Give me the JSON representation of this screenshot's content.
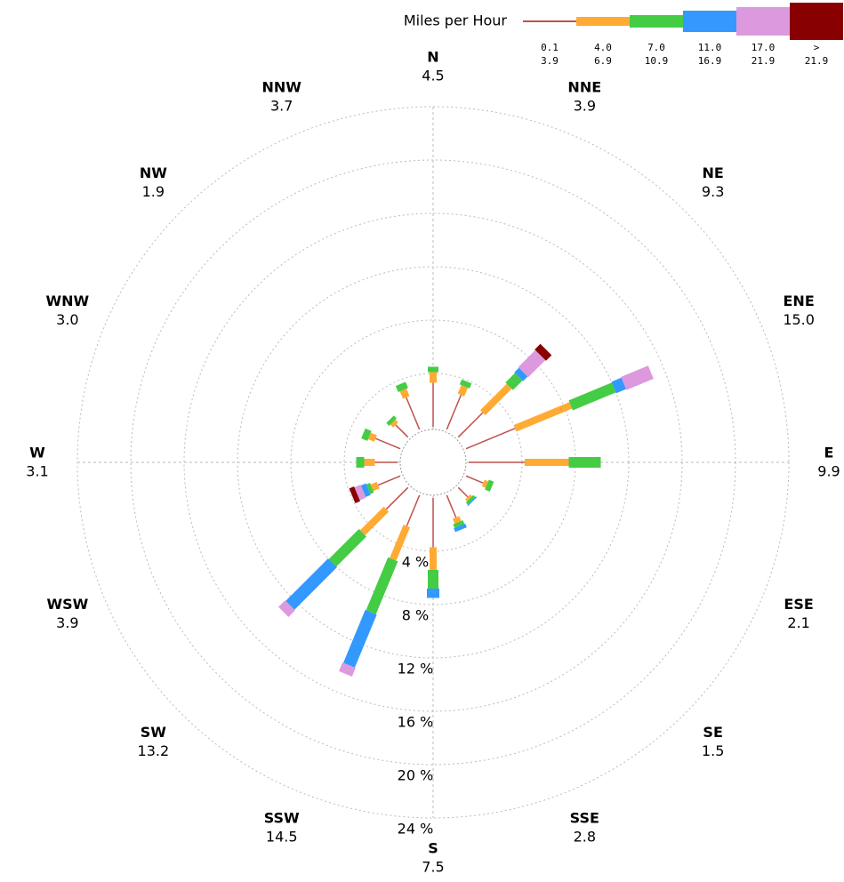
{
  "chart_data": {
    "type": "windrose",
    "legend_title": "Miles per Hour",
    "categories": [
      "N",
      "NNE",
      "NE",
      "ENE",
      "E",
      "ESE",
      "SE",
      "SSE",
      "S",
      "SSW",
      "SW",
      "WSW",
      "W",
      "WNW",
      "NW",
      "NNW"
    ],
    "values": [
      4.5,
      3.9,
      9.3,
      15.0,
      9.9,
      2.1,
      1.5,
      2.8,
      7.5,
      14.5,
      13.2,
      3.9,
      3.1,
      3.0,
      1.9,
      3.7
    ],
    "value_labels": [
      "4.5",
      "3.9",
      "9.3",
      "15.0",
      "9.9",
      "2.1",
      "1.5",
      "2.8",
      "7.5",
      "14.5",
      "13.2",
      "3.9",
      "3.1",
      "3.0",
      "1.9",
      "3.7"
    ],
    "rlim": [
      0,
      24
    ],
    "rticks": [
      {
        "value": 4,
        "label": "4 %"
      },
      {
        "value": 8,
        "label": "8 %"
      },
      {
        "value": 12,
        "label": "12 %"
      },
      {
        "value": 16,
        "label": "16 %"
      },
      {
        "value": 20,
        "label": "20 %"
      },
      {
        "value": 24,
        "label": "24 %"
      }
    ],
    "series": [
      {
        "label_lines": [
          "0.1",
          "3.9"
        ],
        "color": "#c0504d",
        "values": [
          3.3,
          2.8,
          2.6,
          4.0,
          4.2,
          1.4,
          1.0,
          1.8,
          3.7,
          2.5,
          2.3,
          1.8,
          1.7,
          2.0,
          1.3,
          2.6
        ]
      },
      {
        "label_lines": [
          "4.0",
          "6.9"
        ],
        "color": "#ffaa33",
        "values": [
          0.8,
          0.7,
          2.8,
          4.5,
          3.3,
          0.3,
          0.2,
          0.4,
          1.7,
          2.7,
          2.5,
          0.5,
          0.8,
          0.5,
          0.3,
          0.6
        ]
      },
      {
        "label_lines": [
          "7.0",
          "10.9"
        ],
        "color": "#44cc44",
        "values": [
          0.4,
          0.4,
          1.0,
          3.5,
          2.4,
          0.4,
          0.2,
          0.3,
          1.4,
          4.3,
          3.2,
          0.3,
          0.6,
          0.5,
          0.3,
          0.5
        ]
      },
      {
        "label_lines": [
          "11.0",
          "16.9"
        ],
        "color": "#3399ff",
        "values": [
          0,
          0,
          0.5,
          0.8,
          0,
          0,
          0.1,
          0.3,
          0.7,
          4.3,
          4.5,
          0.4,
          0,
          0,
          0,
          0
        ]
      },
      {
        "label_lines": [
          "17.0",
          "21.9"
        ],
        "color": "#dd99dd",
        "values": [
          0,
          0,
          1.8,
          2.2,
          0,
          0,
          0,
          0,
          0,
          0.7,
          0.7,
          0.5,
          0,
          0,
          0,
          0
        ]
      },
      {
        "label_lines": [
          ">",
          "21.9"
        ],
        "color": "#880000",
        "values": [
          0,
          0,
          0.6,
          0,
          0,
          0,
          0,
          0,
          0,
          0,
          0,
          0.4,
          0,
          0,
          0,
          0
        ]
      }
    ]
  }
}
